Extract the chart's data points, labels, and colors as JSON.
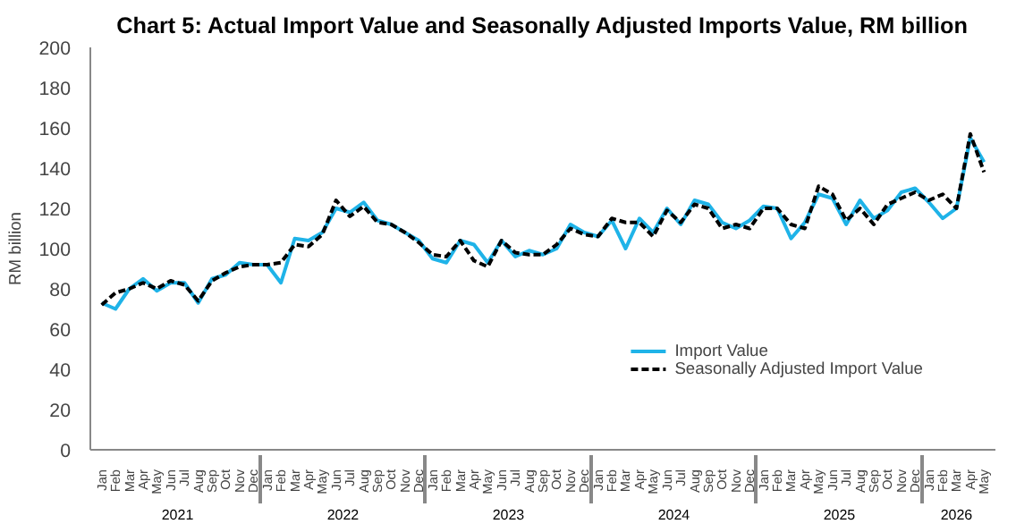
{
  "chart_data": {
    "type": "line",
    "title": "Chart 5: Actual Import Value and Seasonally Adjusted Imports Value, RM billion",
    "ylabel": "RM billion",
    "categories": [
      "Jan",
      "Feb",
      "Mar",
      "Apr",
      "May",
      "Jun",
      "Jul",
      "Aug",
      "Sep",
      "Oct",
      "Nov",
      "Dec",
      "Jan",
      "Feb",
      "Mar",
      "Apr",
      "May",
      "Jun",
      "Jul",
      "Aug",
      "Sep",
      "Oct",
      "Nov",
      "Dec",
      "Jan",
      "Feb",
      "Mar",
      "Apr",
      "May",
      "Jun",
      "Jul",
      "Aug",
      "Sep",
      "Oct",
      "Nov",
      "Dec",
      "Jan",
      "Feb",
      "Mar",
      "Apr",
      "May",
      "Jun",
      "Jul",
      "Aug",
      "Sep",
      "Oct",
      "Nov",
      "Dec",
      "Jan",
      "Feb",
      "Mar",
      "Apr",
      "May",
      "Jun",
      "Jul",
      "Aug",
      "Sep",
      "Oct",
      "Nov",
      "Dec",
      "Jan",
      "Feb",
      "Mar",
      "Apr",
      "May"
    ],
    "annotations": [
      "2021",
      "2022",
      "2023",
      "2024",
      "2025",
      "2026"
    ],
    "series": [
      {
        "name": "Import Value",
        "color": "#1fb3e8",
        "line_style": "solid",
        "values": [
          73,
          70,
          80,
          85,
          79,
          83,
          83,
          73,
          85,
          87,
          93,
          92,
          92,
          83,
          105,
          104,
          108,
          120,
          118,
          123,
          114,
          112,
          108,
          104,
          95,
          93,
          104,
          102,
          93,
          104,
          96,
          99,
          97,
          100,
          112,
          108,
          106,
          114,
          100,
          115,
          108,
          120,
          112,
          124,
          122,
          113,
          110,
          114,
          121,
          120,
          105,
          113,
          127,
          125,
          112,
          124,
          115,
          119,
          128,
          130,
          123,
          115,
          120,
          155,
          143
        ]
      },
      {
        "name": "Seasonally Adjusted Import Value",
        "color": "#000000",
        "line_style": "dashed",
        "values": [
          72,
          78,
          80,
          83,
          80,
          84,
          82,
          74,
          84,
          88,
          91,
          92,
          92,
          93,
          102,
          101,
          107,
          124,
          116,
          121,
          113,
          112,
          108,
          103,
          97,
          96,
          104,
          94,
          91,
          104,
          98,
          97,
          97,
          102,
          110,
          107,
          106,
          115,
          113,
          113,
          106,
          119,
          113,
          122,
          120,
          110,
          112,
          110,
          120,
          120,
          112,
          110,
          131,
          127,
          114,
          120,
          112,
          122,
          125,
          128,
          124,
          127,
          120,
          157,
          138
        ]
      }
    ],
    "ylim": [
      0,
      200
    ],
    "yticks": [
      0,
      20,
      40,
      60,
      80,
      100,
      120,
      140,
      160,
      180,
      200
    ],
    "grid": false,
    "legend": "bottom right",
    "marker": "none"
  }
}
